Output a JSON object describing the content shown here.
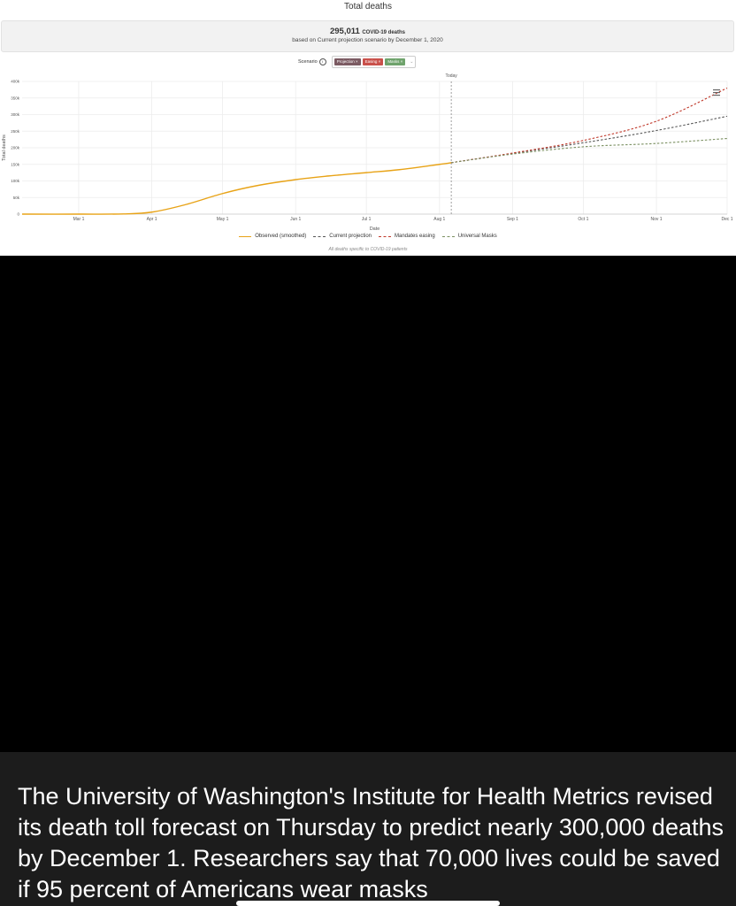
{
  "chart_title": "Total deaths",
  "summary": {
    "count": "295,011",
    "unit": "COVID-19 deaths",
    "subtitle": "based on Current projection scenario by December 1, 2020"
  },
  "scenario": {
    "label": "Scenario",
    "info_icon": "info-icon",
    "chips": [
      {
        "label": "Projection",
        "close": "×",
        "color": "#7b5a62"
      },
      {
        "label": "Easing",
        "close": "×",
        "color": "#c9504a"
      },
      {
        "label": "Masks",
        "close": "×",
        "color": "#6fa36c"
      }
    ],
    "dropdown_icon": "chevron-down-icon"
  },
  "menu_icon": "hamburger-menu-icon",
  "chart_data": {
    "type": "line",
    "title": "Total deaths",
    "xlabel": "Date",
    "ylabel": "Total deaths",
    "x_ticks": [
      "Mar 1",
      "Apr 1",
      "May 1",
      "Jun 1",
      "Jul 1",
      "Aug 1",
      "Sep 1",
      "Oct 1",
      "Nov 1",
      "Dec 1"
    ],
    "x_range": [
      "2020-02-06",
      "2020-12-01"
    ],
    "y_ticks": [
      "0",
      "50k",
      "100k",
      "150k",
      "200k",
      "250k",
      "300k",
      "350k",
      "400k"
    ],
    "ylim": [
      0,
      400000
    ],
    "grid": true,
    "today_label": "Today",
    "today_date": "2020-08-06",
    "legend_position": "bottom",
    "series": [
      {
        "name": "Observed (smoothed)",
        "style": "solid",
        "color": "#e8a317",
        "points": [
          [
            "2020-02-06",
            0
          ],
          [
            "2020-03-01",
            0
          ],
          [
            "2020-03-20",
            500
          ],
          [
            "2020-04-01",
            6000
          ],
          [
            "2020-04-15",
            28000
          ],
          [
            "2020-05-01",
            62000
          ],
          [
            "2020-05-15",
            85000
          ],
          [
            "2020-06-01",
            104000
          ],
          [
            "2020-06-15",
            115000
          ],
          [
            "2020-07-01",
            125000
          ],
          [
            "2020-07-15",
            134000
          ],
          [
            "2020-08-01",
            150000
          ],
          [
            "2020-08-06",
            155000
          ]
        ]
      },
      {
        "name": "Current projection",
        "style": "dashed",
        "color": "#555555",
        "points": [
          [
            "2020-08-06",
            155000
          ],
          [
            "2020-09-01",
            183000
          ],
          [
            "2020-10-01",
            215000
          ],
          [
            "2020-11-01",
            252000
          ],
          [
            "2020-12-01",
            295000
          ]
        ]
      },
      {
        "name": "Mandates easing",
        "style": "dashed",
        "color": "#c0392b",
        "points": [
          [
            "2020-08-06",
            155000
          ],
          [
            "2020-09-01",
            184000
          ],
          [
            "2020-10-01",
            222000
          ],
          [
            "2020-11-01",
            280000
          ],
          [
            "2020-12-01",
            380000
          ]
        ]
      },
      {
        "name": "Universal Masks",
        "style": "dashed",
        "color": "#7a8f60",
        "points": [
          [
            "2020-08-06",
            155000
          ],
          [
            "2020-09-01",
            181000
          ],
          [
            "2020-10-01",
            203000
          ],
          [
            "2020-11-01",
            213000
          ],
          [
            "2020-12-01",
            228000
          ]
        ]
      }
    ]
  },
  "footnote": "All deaths specific to COVID-19 patients",
  "caption": "The University of Washington's Institute for Health Metrics revised its death toll forecast on Thursday to predict nearly 300,000 deaths by December 1. Researchers say that 70,000 lives could be saved if 95 percent of Americans wear masks"
}
